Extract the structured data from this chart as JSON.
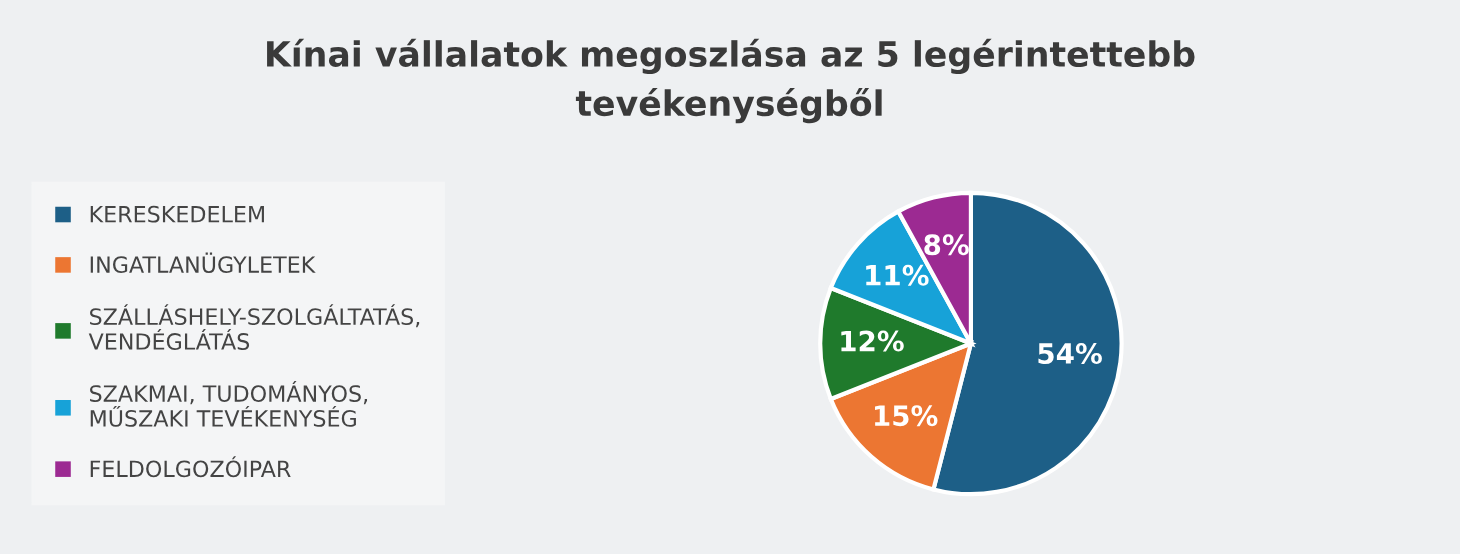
{
  "chart_data": {
    "type": "pie",
    "title": "Kínai vállalatok megoszlása az 5 legérintettebb\ntevékenységből",
    "categories": [
      "KERESKEDELEM",
      "INGATLANÜGYLETEK",
      "SZÁLLÁSHELY-SZOLGÁLTATÁS,\nVENDÉGLÁTÁS",
      "SZAKMAI, TUDOMÁNYOS,\nMŰSZAKI TEVÉKENYSÉG",
      "FELDOLGOZÓIPAR"
    ],
    "values": [
      54,
      15,
      12,
      11,
      8
    ],
    "colors": [
      "#1d5f87",
      "#ec7632",
      "#1f7a2c",
      "#17a2d8",
      "#9c2a92"
    ],
    "value_labels": [
      "54%",
      "15%",
      "12%",
      "11%",
      "8%"
    ],
    "legend": "left"
  }
}
